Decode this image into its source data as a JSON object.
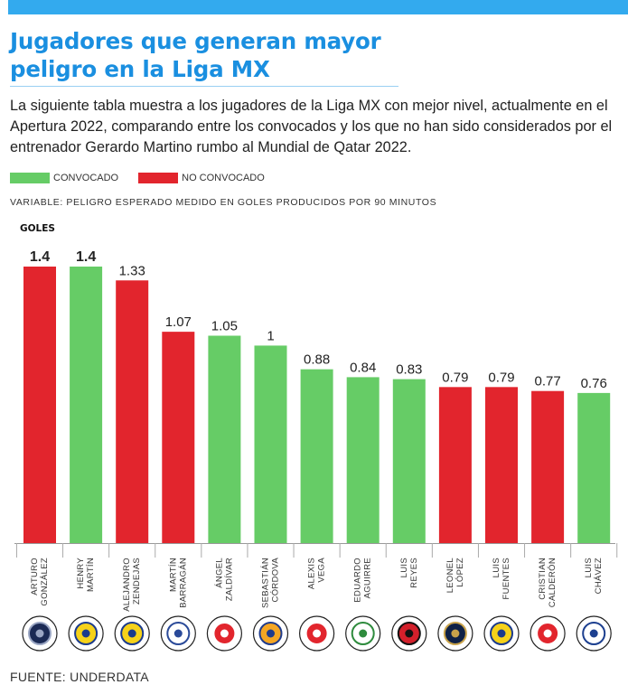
{
  "header": {
    "title": "Jugadores que generan mayor peligro en la Liga MX",
    "subtitle": "La siguiente tabla muestra a los jugadores de la Liga MX con mejor nivel, actualmente en el Apertura 2022, comparando entre los convocados y los que no han sido considerados por el entrenador Gerardo Martino rumbo al Mundial de Qatar 2022."
  },
  "legend": {
    "convocado_label": "CONVOCADO",
    "no_convocado_label": "NO CONVOCADO"
  },
  "variable_text": "VARIABLE: PELIGRO ESPERADO MEDIDO EN GOLES PRODUCIDOS POR 90 MINUTOS",
  "source_text": "FUENTE: UNDERDATA",
  "colors": {
    "convocado": "#66cc66",
    "no_convocado": "#e2252d",
    "title": "#1a8fe0",
    "topbar": "#33aaee"
  },
  "chart_data": {
    "type": "bar",
    "ylabel": "GOLES",
    "ylim": [
      0,
      1.4
    ],
    "players": [
      {
        "line1": "ARTURO",
        "line2": "GONZÁLEZ",
        "value": 1.4,
        "label": "1.4",
        "bold": true,
        "status": "no_convocado",
        "club": "Monterrey"
      },
      {
        "line1": "HENRY",
        "line2": "MARTÍN",
        "value": 1.4,
        "label": "1.4",
        "bold": true,
        "status": "convocado",
        "club": "América"
      },
      {
        "line1": "ALEJANDRO",
        "line2": "ZENDEJAS",
        "value": 1.33,
        "label": "1.33",
        "bold": false,
        "status": "no_convocado",
        "club": "América"
      },
      {
        "line1": "MARTÍN",
        "line2": "BARRAGÁN",
        "value": 1.07,
        "label": "1.07",
        "bold": false,
        "status": "no_convocado",
        "club": "Puebla"
      },
      {
        "line1": "ÁNGEL",
        "line2": "ZALDÍVAR",
        "value": 1.05,
        "label": "1.05",
        "bold": false,
        "status": "convocado",
        "club": "Chivas"
      },
      {
        "line1": "SEBASTIÁN",
        "line2": "CÓRDOVA",
        "value": 1.0,
        "label": "1",
        "bold": false,
        "status": "convocado",
        "club": "Tigres"
      },
      {
        "line1": "ALEXIS",
        "line2": "VEGA",
        "value": 0.88,
        "label": "0.88",
        "bold": false,
        "status": "convocado",
        "club": "Chivas"
      },
      {
        "line1": "EDUARDO",
        "line2": "AGUIRRE",
        "value": 0.84,
        "label": "0.84",
        "bold": false,
        "status": "convocado",
        "club": "Santos"
      },
      {
        "line1": "LUIS",
        "line2": "REYES",
        "value": 0.83,
        "label": "0.83",
        "bold": false,
        "status": "convocado",
        "club": "Atlas"
      },
      {
        "line1": "LEONEL",
        "line2": "LÓPEZ",
        "value": 0.79,
        "label": "0.79",
        "bold": false,
        "status": "no_convocado",
        "club": "Pumas"
      },
      {
        "line1": "LUIS",
        "line2": "FUENTES",
        "value": 0.79,
        "label": "0.79",
        "bold": false,
        "status": "no_convocado",
        "club": "América"
      },
      {
        "line1": "CRISTIAN",
        "line2": "CALDERÓN",
        "value": 0.77,
        "label": "0.77",
        "bold": false,
        "status": "no_convocado",
        "club": "Chivas"
      },
      {
        "line1": "LUIS",
        "line2": "CHÁVEZ",
        "value": 0.76,
        "label": "0.76",
        "bold": false,
        "status": "convocado",
        "club": "Pachuca"
      }
    ]
  }
}
